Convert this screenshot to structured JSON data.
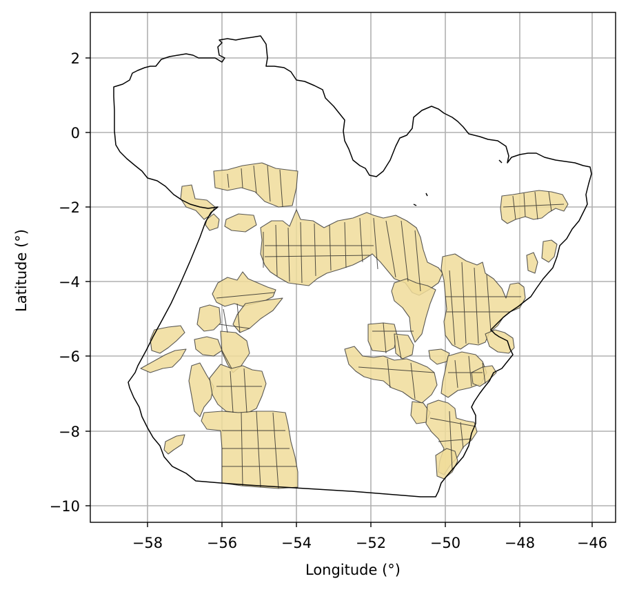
{
  "chart_data": {
    "type": "map",
    "title": "",
    "xlabel": "Longitude (°)",
    "ylabel": "Latitude (°)",
    "xlim": [
      -59.5,
      -45.5
    ],
    "ylim": [
      -10.45,
      3.2
    ],
    "grid": true,
    "x_ticks": [
      -58,
      -56,
      -54,
      -52,
      -50,
      -48,
      -46
    ],
    "x_tick_labels": [
      "−58",
      "−56",
      "−54",
      "−52",
      "−50",
      "−48",
      "−46"
    ],
    "y_ticks": [
      2,
      0,
      -2,
      -4,
      -6,
      -8,
      -10
    ],
    "y_tick_labels": [
      "2",
      "0",
      "−2",
      "−4",
      "−6",
      "−8",
      "−10"
    ],
    "layers": [
      {
        "role": "region-boundary",
        "stroke": "#000000",
        "fill": "none"
      },
      {
        "role": "protected-areas",
        "fill": "#f0dc9a",
        "stroke": "#3b3b3b"
      }
    ]
  }
}
